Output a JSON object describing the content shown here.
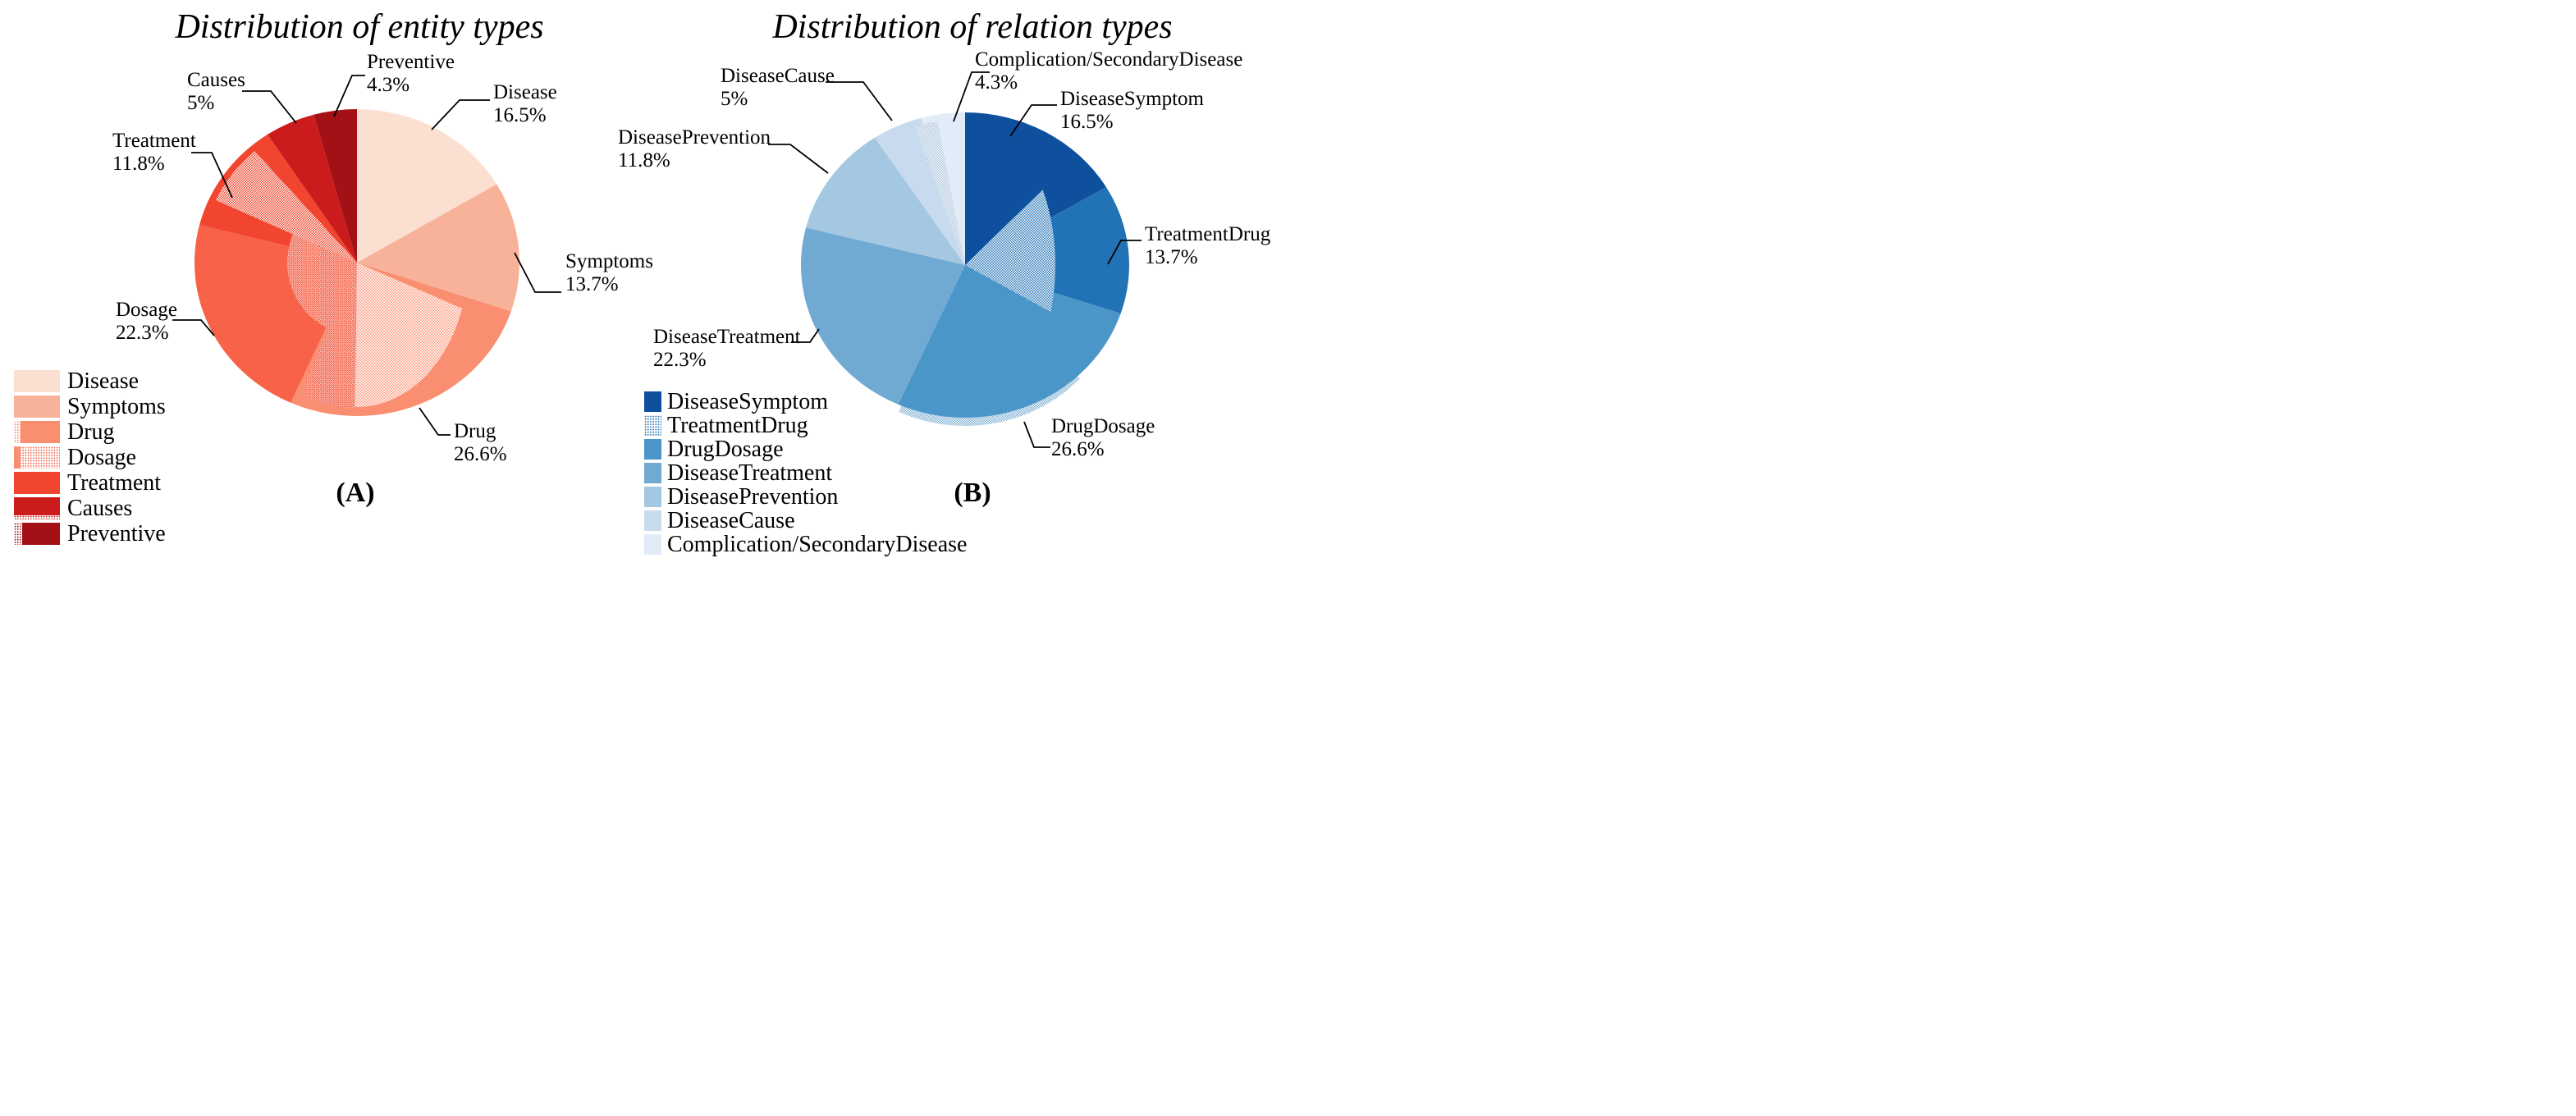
{
  "figure": {
    "background": "#ffffff"
  },
  "chart_data": [
    {
      "type": "pie",
      "panel": "A",
      "title": "Distribution of entity types",
      "caption": "(A)",
      "direction": "clockwise",
      "start_angle": 90,
      "units": "percent",
      "categories": [
        "Disease",
        "Symptoms",
        "Drug",
        "Dosage",
        "Treatment",
        "Causes",
        "Preventive"
      ],
      "values": [
        16.5,
        13.7,
        26.6,
        22.3,
        11.8,
        5.0,
        4.3
      ],
      "percent_labels": [
        "16.5%",
        "13.7%",
        "26.6%",
        "22.3%",
        "11.8%",
        "5%",
        "4.3%"
      ],
      "colors": [
        "#fbe0d1",
        "#f9b29a",
        "#f98e70",
        "#f76248",
        "#f1452f",
        "#cc1b1d",
        "#a31116"
      ],
      "legend_items": [
        "Disease",
        "Symptoms",
        "Drug",
        "Dosage",
        "Treatment",
        "Causes",
        "Preventive"
      ],
      "legend_hatched": [
        "Dosage"
      ],
      "pie_hatched_regions": [
        "Drug",
        "Dosage",
        "Treatment"
      ],
      "legend_position": "lower-left"
    },
    {
      "type": "pie",
      "panel": "B",
      "title": "Distribution of relation types",
      "caption": "(B)",
      "direction": "clockwise",
      "start_angle": 90,
      "units": "percent",
      "categories": [
        "DiseaseSymptom",
        "TreatmentDrug",
        "DrugDosage",
        "DiseaseTreatment",
        "DiseasePrevention",
        "DiseaseCause",
        "Complication/SecondaryDisease"
      ],
      "values": [
        16.5,
        13.7,
        26.6,
        22.3,
        11.8,
        5.0,
        4.3
      ],
      "percent_labels": [
        "16.5%",
        "13.7%",
        "26.6%",
        "22.3%",
        "11.8%",
        "5%",
        "4.3%"
      ],
      "colors": [
        "#0e509d",
        "#2273b5",
        "#4b96c9",
        "#70a9d2",
        "#a4c8e1",
        "#c8dbee",
        "#e2ecf8"
      ],
      "legend_items": [
        "DiseaseSymptom",
        "TreatmentDrug",
        "DrugDosage",
        "DiseaseTreatment",
        "DiseasePrevention",
        "DiseaseCause",
        "Complication/SecondaryDisease"
      ],
      "legend_hatched": [
        "TreatmentDrug"
      ],
      "pie_hatched_regions": [
        "TreatmentDrug",
        "DrugDosage",
        "DiseaseCause"
      ],
      "legend_position": "lower-left-of-panel"
    }
  ]
}
